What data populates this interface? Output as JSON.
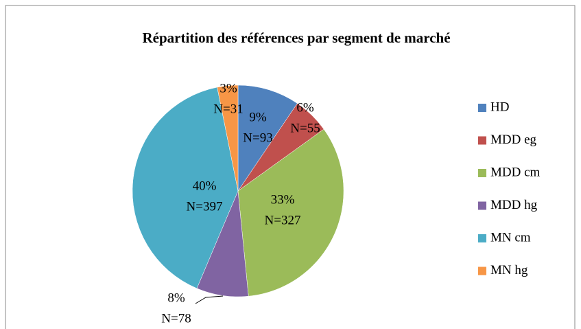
{
  "chart_data": {
    "type": "pie",
    "title": "Répartition des références par segment de marché",
    "categories": [
      "HD",
      "MDD eg",
      "MDD cm",
      "MDD hg",
      "MN cm",
      "MN hg"
    ],
    "values": [
      9,
      6,
      33,
      8,
      40,
      3
    ],
    "value_labels": [
      "9%",
      "6%",
      "33%",
      "8%",
      "40%",
      "3%"
    ],
    "counts": [
      93,
      55,
      327,
      78,
      397,
      31
    ],
    "count_labels": [
      "N=93",
      "N=55",
      "N=327",
      "N=78",
      "N=397",
      "N=31"
    ],
    "colors": [
      "#4f81bd",
      "#c0504d",
      "#9bbb59",
      "#8064a2",
      "#4bacc6",
      "#f79646"
    ],
    "legend": "right"
  }
}
